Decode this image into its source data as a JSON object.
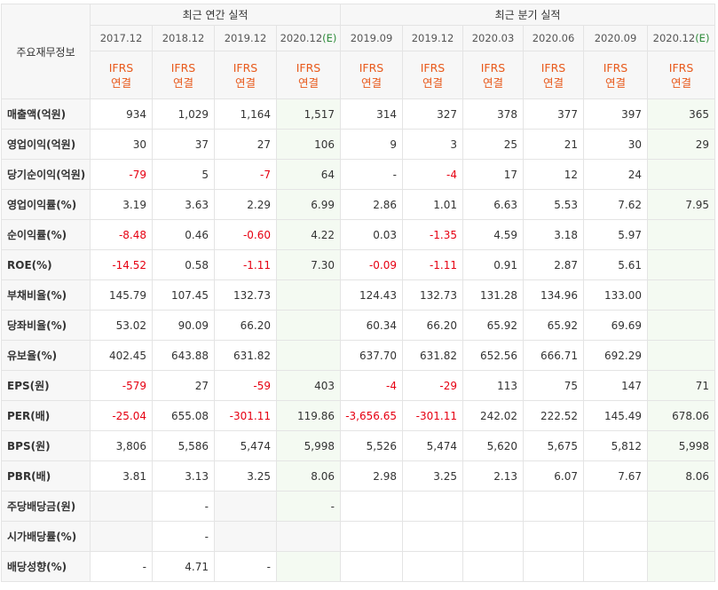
{
  "header": {
    "row_label": "주요재무정보",
    "annual_group": "최근 연간 실적",
    "quarter_group": "최근 분기 실적",
    "periods": [
      {
        "label": "2017.12",
        "est": ""
      },
      {
        "label": "2018.12",
        "est": ""
      },
      {
        "label": "2019.12",
        "est": ""
      },
      {
        "label": "2020.12",
        "est": "(E)"
      },
      {
        "label": "2019.09",
        "est": ""
      },
      {
        "label": "2019.12",
        "est": ""
      },
      {
        "label": "2020.03",
        "est": ""
      },
      {
        "label": "2020.06",
        "est": ""
      },
      {
        "label": "2020.09",
        "est": ""
      },
      {
        "label": "2020.12",
        "est": "(E)"
      }
    ],
    "ifrs_line1": "IFRS",
    "ifrs_line2": "연결"
  },
  "rows": [
    {
      "label": "매출액(억원)",
      "values": [
        "934",
        "1,029",
        "1,164",
        "1,517",
        "314",
        "327",
        "378",
        "377",
        "397",
        "365"
      ]
    },
    {
      "label": "영업이익(억원)",
      "values": [
        "30",
        "37",
        "27",
        "106",
        "9",
        "3",
        "25",
        "21",
        "30",
        "29"
      ]
    },
    {
      "label": "당기순이익(억원)",
      "values": [
        "-79",
        "5",
        "-7",
        "64",
        "-",
        "-4",
        "17",
        "12",
        "24",
        ""
      ]
    },
    {
      "label": "영업이익률(%)",
      "values": [
        "3.19",
        "3.63",
        "2.29",
        "6.99",
        "2.86",
        "1.01",
        "6.63",
        "5.53",
        "7.62",
        "7.95"
      ]
    },
    {
      "label": "순이익률(%)",
      "values": [
        "-8.48",
        "0.46",
        "-0.60",
        "4.22",
        "0.03",
        "-1.35",
        "4.59",
        "3.18",
        "5.97",
        ""
      ]
    },
    {
      "label": "ROE(%)",
      "values": [
        "-14.52",
        "0.58",
        "-1.11",
        "7.30",
        "-0.09",
        "-1.11",
        "0.91",
        "2.87",
        "5.61",
        ""
      ]
    },
    {
      "label": "부채비율(%)",
      "values": [
        "145.79",
        "107.45",
        "132.73",
        "",
        "124.43",
        "132.73",
        "131.28",
        "134.96",
        "133.00",
        ""
      ]
    },
    {
      "label": "당좌비율(%)",
      "values": [
        "53.02",
        "90.09",
        "66.20",
        "",
        "60.34",
        "66.20",
        "65.92",
        "65.92",
        "69.69",
        ""
      ]
    },
    {
      "label": "유보율(%)",
      "values": [
        "402.45",
        "643.88",
        "631.82",
        "",
        "637.70",
        "631.82",
        "652.56",
        "666.71",
        "692.29",
        ""
      ]
    },
    {
      "label": "EPS(원)",
      "values": [
        "-579",
        "27",
        "-59",
        "403",
        "-4",
        "-29",
        "113",
        "75",
        "147",
        "71"
      ]
    },
    {
      "label": "PER(배)",
      "values": [
        "-25.04",
        "655.08",
        "-301.11",
        "119.86",
        "-3,656.65",
        "-301.11",
        "242.02",
        "222.52",
        "145.49",
        "678.06"
      ]
    },
    {
      "label": "BPS(원)",
      "values": [
        "3,806",
        "5,586",
        "5,474",
        "5,998",
        "5,526",
        "5,474",
        "5,620",
        "5,675",
        "5,812",
        "5,998"
      ]
    },
    {
      "label": "PBR(배)",
      "values": [
        "3.81",
        "3.13",
        "3.25",
        "8.06",
        "2.98",
        "3.25",
        "2.13",
        "6.07",
        "7.67",
        "8.06"
      ]
    },
    {
      "label": "주당배당금(원)",
      "values": [
        "",
        "-",
        "",
        "-",
        "",
        "",
        "",
        "",
        "",
        ""
      ]
    },
    {
      "label": "시가배당률(%)",
      "values": [
        "",
        "-",
        "",
        "",
        "",
        "",
        "",
        "",
        "",
        ""
      ]
    },
    {
      "label": "배당성향(%)",
      "values": [
        "-",
        "4.71",
        "-",
        "",
        "",
        "",
        "",
        "",
        "",
        ""
      ]
    }
  ]
}
